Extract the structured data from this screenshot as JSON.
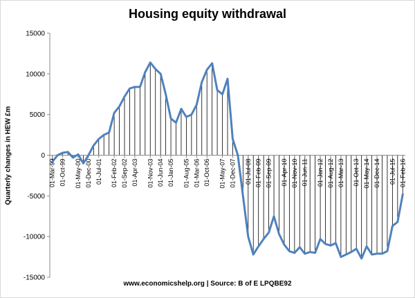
{
  "chart_data": {
    "type": "line",
    "title": "Housing equity withdrawal",
    "ylabel": "Quarterly changes in HEW £m",
    "xlabel": "",
    "source": "www.economicshelp.org | Source: B of E LPQBE92",
    "ylim": [
      -15000,
      15000
    ],
    "yticks": [
      15000,
      10000,
      5000,
      0,
      -5000,
      -10000,
      -15000
    ],
    "grid": false,
    "drop_lines": true,
    "series_color": "#4f81bd",
    "x_tick_labels": [
      "01-Mar-99",
      "01-Oct-99",
      "01-May-00",
      "01-Dec-00",
      "01-Jul-01",
      "01-Feb-02",
      "01-Sep-02",
      "01-Apr-03",
      "01-Nov-03",
      "01-Jun-04",
      "01-Jan-05",
      "01-Aug-05",
      "01-Mar-06",
      "01-Oct-06",
      "01-May-07",
      "01-Dec-07",
      "01-Jul-08",
      "01-Feb-09",
      "01-Sep-09",
      "01-Apr-10",
      "01-Nov-10",
      "01-Jun-11",
      "01-Jan-12",
      "01-Aug-12",
      "01-Mar-13",
      "01-Oct-13",
      "01-May-14",
      "01-Dec-14",
      "01-Jul-15",
      "01-Feb-16"
    ],
    "series": [
      {
        "values": [
          -800,
          0,
          300,
          400,
          -300,
          100,
          -1000,
          0,
          1200,
          2000,
          2500,
          2800,
          5200,
          6000,
          7200,
          8200,
          8400,
          8400,
          10200,
          11400,
          10600,
          10000,
          7500,
          4500,
          4000,
          5700,
          4700,
          5000,
          6200,
          9000,
          10500,
          11300,
          8000,
          7500,
          9400,
          2000,
          0,
          -5000,
          -10000,
          -12200,
          -11200,
          -10300,
          -9500,
          -7500,
          -9700,
          -11000,
          -11800,
          -12000,
          -11300,
          -12100,
          -11900,
          -12000,
          -10300,
          -10900,
          -11100,
          -10800,
          -12500,
          -12200,
          -11900,
          -11500,
          -12700,
          -11200,
          -12200,
          -12100,
          -12100,
          -11800,
          -8700,
          -8200,
          -4800
        ]
      }
    ]
  }
}
